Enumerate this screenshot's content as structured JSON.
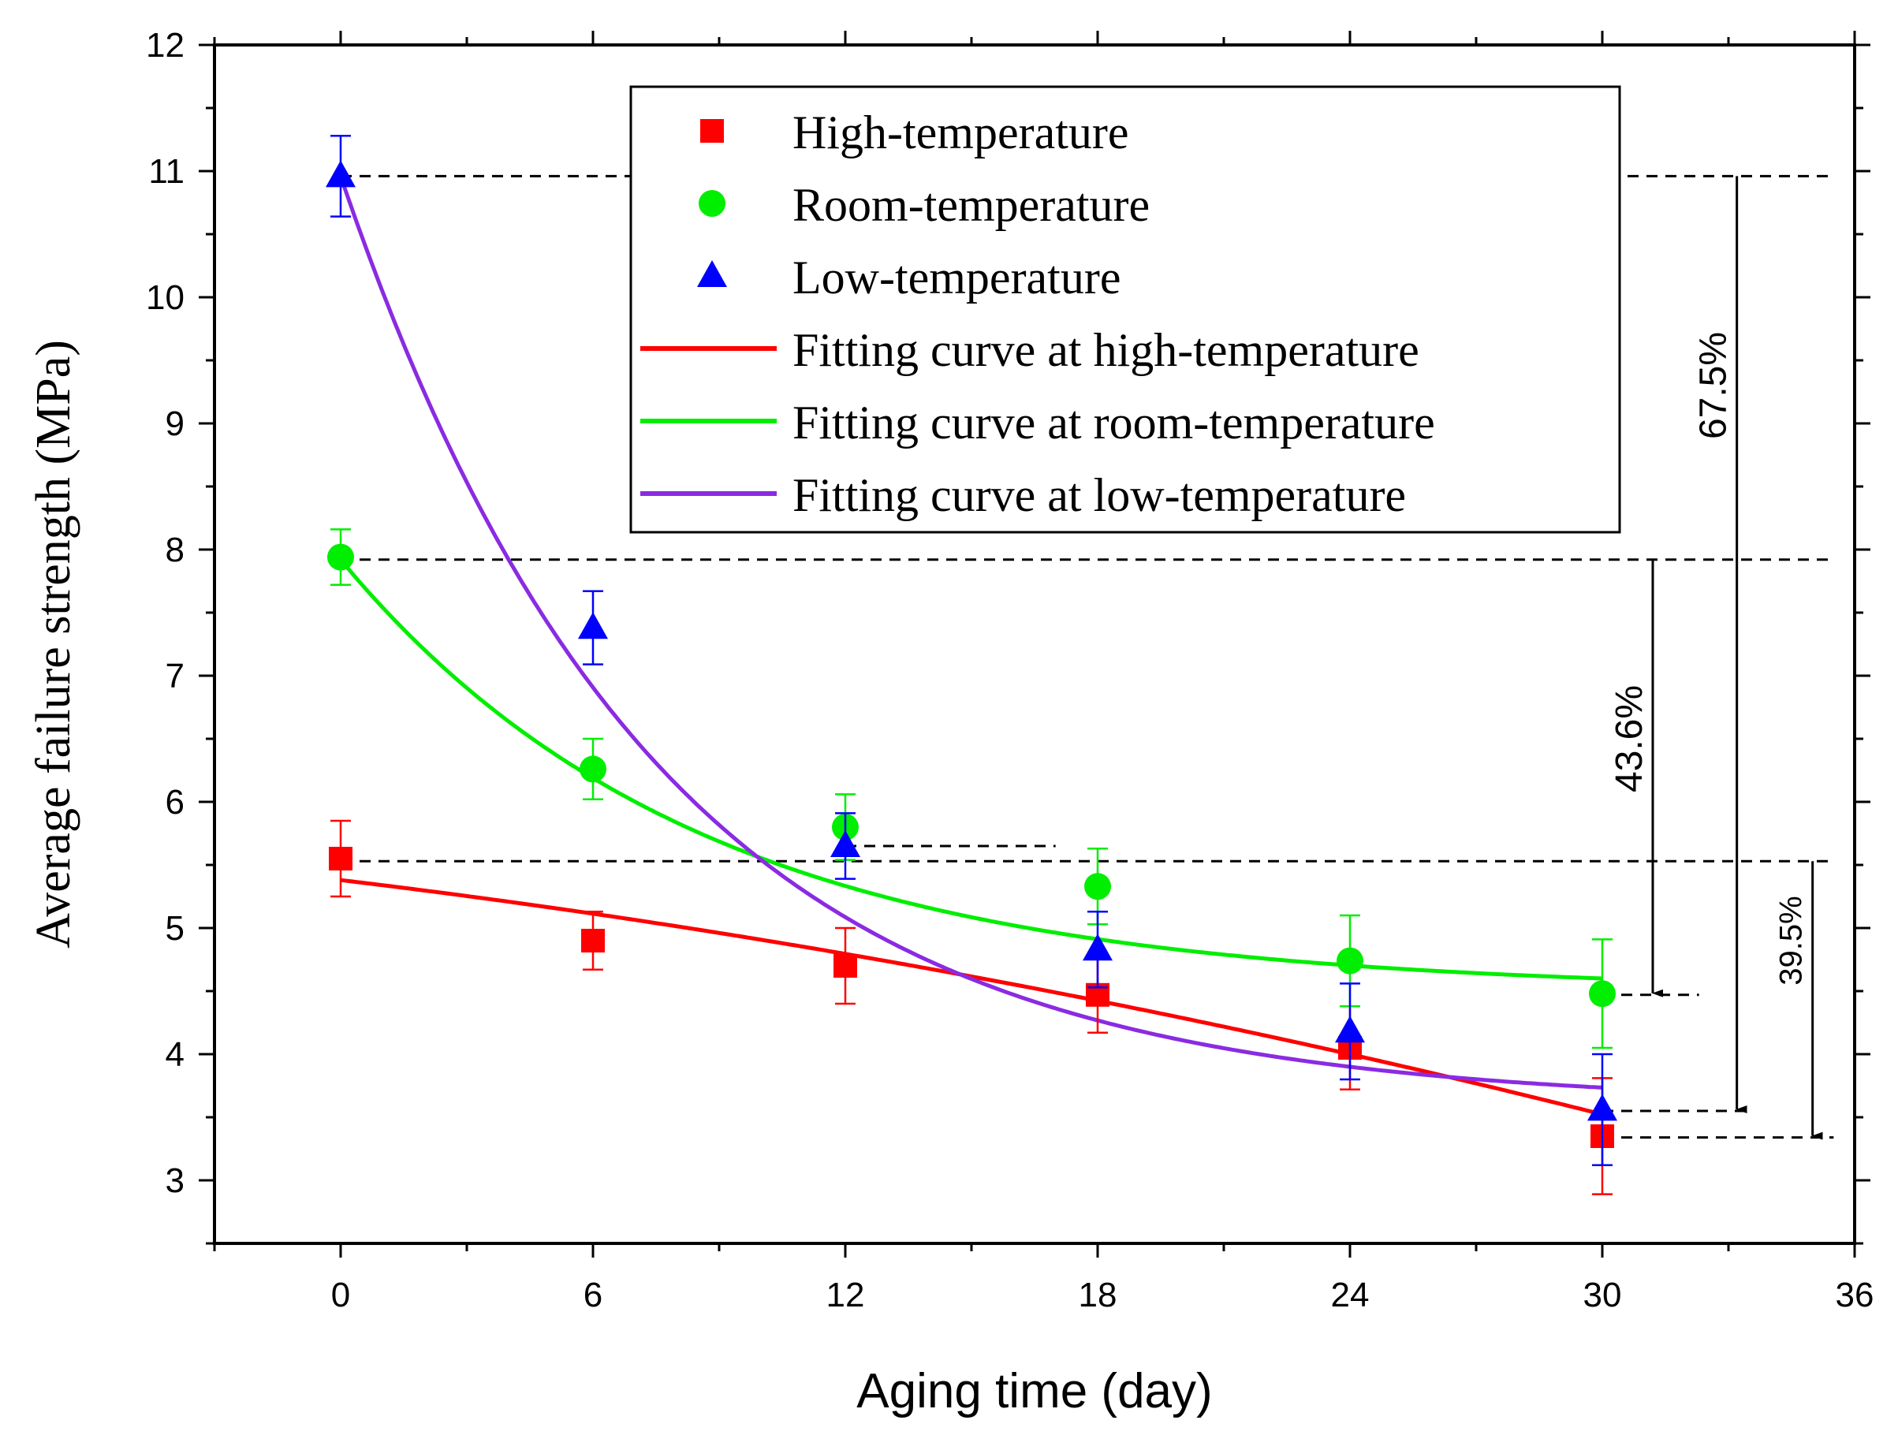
{
  "chart_data": {
    "type": "scatter",
    "title": "",
    "xlabel": "Aging time (day)",
    "ylabel": "Average failure strength (MPa)",
    "xlim": [
      -3,
      36
    ],
    "ylim": [
      2.5,
      12
    ],
    "x_ticks": [
      0,
      6,
      12,
      18,
      24,
      30,
      36
    ],
    "x_tick_labels": [
      "0",
      "6",
      "12",
      "18",
      "24",
      "30",
      "36"
    ],
    "y_ticks": [
      3,
      4,
      5,
      6,
      7,
      8,
      9,
      10,
      11,
      12
    ],
    "y_tick_labels": [
      "3",
      "4",
      "5",
      "6",
      "7",
      "8",
      "9",
      "10",
      "11",
      "12"
    ],
    "grid": false,
    "legend_position": "top-right",
    "series": [
      {
        "name": "High-temperature",
        "marker": "square",
        "color": "#ff0000",
        "x": [
          0,
          6,
          12,
          18,
          24,
          30
        ],
        "y": [
          5.55,
          4.9,
          4.7,
          4.47,
          4.05,
          3.35
        ],
        "err": [
          0.3,
          0.23,
          0.3,
          0.3,
          0.33,
          0.46
        ]
      },
      {
        "name": "Room-temperature",
        "marker": "circle",
        "color": "#00ee00",
        "x": [
          0,
          6,
          12,
          18,
          24,
          30
        ],
        "y": [
          7.94,
          6.26,
          5.8,
          5.33,
          4.74,
          4.48
        ],
        "err": [
          0.22,
          0.24,
          0.26,
          0.3,
          0.36,
          0.43
        ]
      },
      {
        "name": "Low-temperature",
        "marker": "triangle",
        "color": "#0000ff",
        "x": [
          0,
          6,
          12,
          18,
          24,
          30
        ],
        "y": [
          10.96,
          7.38,
          5.65,
          4.83,
          4.18,
          3.56
        ],
        "err": [
          0.32,
          0.29,
          0.26,
          0.3,
          0.38,
          0.44
        ]
      }
    ],
    "fit_curves": [
      {
        "name": "Fitting curve at high-temperature",
        "color": "#ff0000",
        "model": "quadratic",
        "a": 5.38,
        "b": -0.04,
        "c": -0.00073
      },
      {
        "name": "Fitting curve at room-temperature",
        "color": "#00ee00",
        "model": "exponential",
        "y0": 4.5,
        "A": 3.42,
        "t": 8.5
      },
      {
        "name": "Fitting curve at low-temperature",
        "color": "#8a2be2",
        "model": "exponential",
        "y0": 3.6,
        "A": 7.36,
        "t": 7.5
      }
    ],
    "legend": [
      "High-temperature",
      "Room-temperature",
      "Low-temperature",
      "Fitting curve at high-temperature",
      "Fitting curve at room-temperature",
      "Fitting curve at low-temperature"
    ],
    "reference_lines": [
      {
        "y": 10.96,
        "x_start": 0,
        "x_end": 35.5
      },
      {
        "y": 7.92,
        "x_start": 0,
        "x_end": 35.5
      },
      {
        "y": 5.53,
        "x_start": 0,
        "x_end": 35.5
      },
      {
        "y": 5.65,
        "x_start": 12,
        "x_end": 17
      },
      {
        "y": 4.47,
        "x_start": 30,
        "x_end": 32.3
      },
      {
        "y": 3.55,
        "x_start": 30,
        "x_end": 33.5
      },
      {
        "y": 3.34,
        "x_start": 30,
        "x_end": 35.5
      }
    ],
    "annotations": [
      {
        "text": "67.5%",
        "x": 33.2,
        "y_from": 10.96,
        "y_to": 3.55,
        "label_y": 9.3,
        "size": "large"
      },
      {
        "text": "43.6%",
        "x": 31.2,
        "y_from": 7.92,
        "y_to": 4.47,
        "label_y": 6.5,
        "size": "large"
      },
      {
        "text": "39.5%",
        "x": 35.0,
        "y_from": 5.53,
        "y_to": 3.34,
        "label_y": 4.9,
        "size": "small"
      }
    ]
  }
}
